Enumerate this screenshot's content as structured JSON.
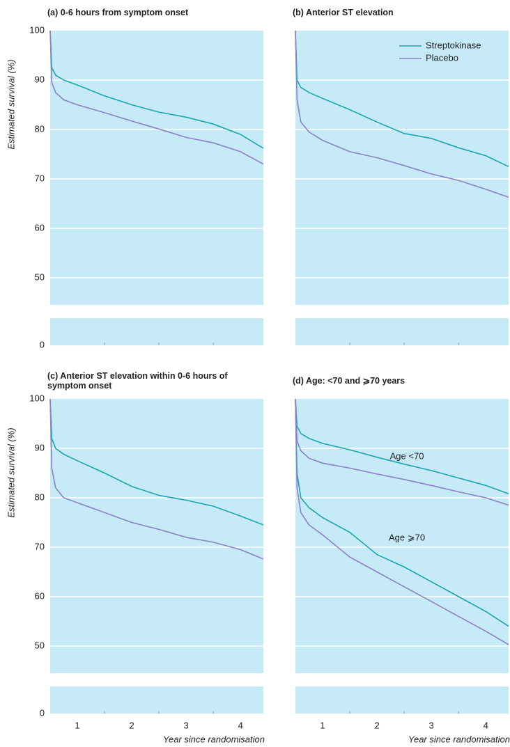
{
  "chart_data": [
    {
      "type": "line",
      "title": "(a) 0-6 hours from symptom onset",
      "ylabel": "Estimated survival (%)",
      "x": [
        0,
        0.03,
        0.1,
        0.25,
        0.5,
        1,
        1.5,
        2,
        2.5,
        3,
        3.5,
        3.92
      ],
      "series": [
        {
          "name": "Streptokinase",
          "color": "#1aa5ac",
          "values": [
            100,
            92.5,
            91,
            90,
            89,
            86.8,
            85,
            83.5,
            82.5,
            81.1,
            79,
            76.2
          ]
        },
        {
          "name": "Placebo",
          "color": "#8c80c6",
          "values": [
            100,
            89.5,
            87.5,
            86,
            85,
            83.4,
            81.7,
            80.1,
            78.4,
            77.3,
            75.5,
            73
          ]
        }
      ],
      "xlim": [
        0,
        3.92
      ],
      "xtick_marks": [
        1,
        2,
        3
      ],
      "ylim": [
        0,
        100
      ],
      "y_break": [
        5.5,
        44.5
      ],
      "yticks": [
        0,
        50,
        60,
        70,
        80,
        90,
        100
      ],
      "ytick_labels": true,
      "grid": true
    },
    {
      "type": "line",
      "title": "(b) Anterior ST elevation",
      "x": [
        0,
        0.03,
        0.1,
        0.25,
        0.5,
        1,
        1.5,
        2,
        2.5,
        3,
        3.5,
        3.92
      ],
      "series": [
        {
          "name": "Streptokinase",
          "color": "#1aa5ac",
          "values": [
            100,
            90,
            88.5,
            87.5,
            86.3,
            84,
            81.5,
            79.2,
            78.2,
            76.3,
            74.7,
            72.5
          ]
        },
        {
          "name": "Placebo",
          "color": "#8c80c6",
          "values": [
            100,
            86,
            81.5,
            79.5,
            77.8,
            75.5,
            74.3,
            72.7,
            71,
            69.7,
            67.9,
            66.3
          ]
        }
      ],
      "xlim": [
        0,
        3.92
      ],
      "xtick_marks": [
        1,
        2,
        3
      ],
      "ylim": [
        0,
        100
      ],
      "y_break": [
        5.5,
        44.5
      ],
      "yticks": [
        0,
        50,
        60,
        70,
        80,
        90,
        100
      ],
      "ytick_labels": false,
      "grid": true,
      "legend": "upper right"
    },
    {
      "type": "line",
      "title": "(c) Anterior ST elevation within 0-6 hours of symptom onset",
      "ylabel": "Estimated survival (%)",
      "xlabel": "Year since randomisation",
      "x": [
        0,
        0.03,
        0.1,
        0.25,
        0.5,
        1,
        1.5,
        2,
        2.5,
        3,
        3.5,
        3.92
      ],
      "series": [
        {
          "name": "Streptokinase",
          "color": "#1aa5ac",
          "values": [
            100,
            92,
            90,
            88.8,
            87.5,
            85,
            82.3,
            80.5,
            79.5,
            78.3,
            76.3,
            74.5
          ]
        },
        {
          "name": "Placebo",
          "color": "#8c80c6",
          "values": [
            100,
            86,
            82,
            80,
            79,
            77,
            75,
            73.6,
            72,
            71,
            69.5,
            67.6
          ]
        }
      ],
      "xlim": [
        0,
        3.92
      ],
      "xtick_marks": [
        1,
        2,
        3
      ],
      "xticks": [
        {
          "value": 0.5,
          "label": "1"
        },
        {
          "value": 1.5,
          "label": "2"
        },
        {
          "value": 2.5,
          "label": "3"
        },
        {
          "value": 3.5,
          "label": "4"
        }
      ],
      "ylim": [
        0,
        100
      ],
      "y_break": [
        5.5,
        44.5
      ],
      "yticks": [
        0,
        50,
        60,
        70,
        80,
        90,
        100
      ],
      "ytick_labels": true,
      "grid": true
    },
    {
      "type": "line",
      "title": "(d) Age: <70 and ⩾70 years",
      "xlabel": "Year since randomisation",
      "annotations": [
        "Age <70",
        "Age ⩾70"
      ],
      "x": [
        0,
        0.03,
        0.1,
        0.25,
        0.5,
        1,
        1.5,
        2,
        2.5,
        3,
        3.5,
        3.92
      ],
      "series": [
        {
          "name": "Streptokinase",
          "color": "#1aa5ac",
          "values": [
            100,
            94.5,
            93,
            92,
            91,
            89.7,
            88.2,
            86.8,
            85.5,
            84,
            82.5,
            80.8
          ]
        },
        {
          "name": "Placebo",
          "color": "#8c80c6",
          "values": [
            100,
            91.5,
            89.5,
            88,
            87,
            86,
            84.8,
            83.7,
            82.5,
            81.2,
            80,
            78.5
          ]
        },
        {
          "name": "Streptokinase",
          "color": "#1aa5ac",
          "values": [
            100,
            85,
            80,
            78,
            76,
            73,
            68.5,
            66,
            63,
            60,
            57,
            54
          ]
        },
        {
          "name": "Placebo",
          "color": "#8c80c6",
          "values": [
            100,
            82,
            77,
            74.5,
            72.5,
            68,
            65,
            62,
            59,
            56,
            53,
            50.3
          ]
        }
      ],
      "xlim": [
        0,
        3.92
      ],
      "xtick_marks": [
        1,
        2,
        3
      ],
      "xticks": [
        {
          "value": 0.5,
          "label": "1"
        },
        {
          "value": 1.5,
          "label": "2"
        },
        {
          "value": 2.5,
          "label": "3"
        },
        {
          "value": 3.5,
          "label": "4"
        }
      ],
      "ylim": [
        0,
        100
      ],
      "y_break": [
        5.5,
        44.5
      ],
      "yticks": [
        0,
        50,
        60,
        70,
        80,
        90,
        100
      ],
      "ytick_labels": false,
      "grid": true
    }
  ]
}
